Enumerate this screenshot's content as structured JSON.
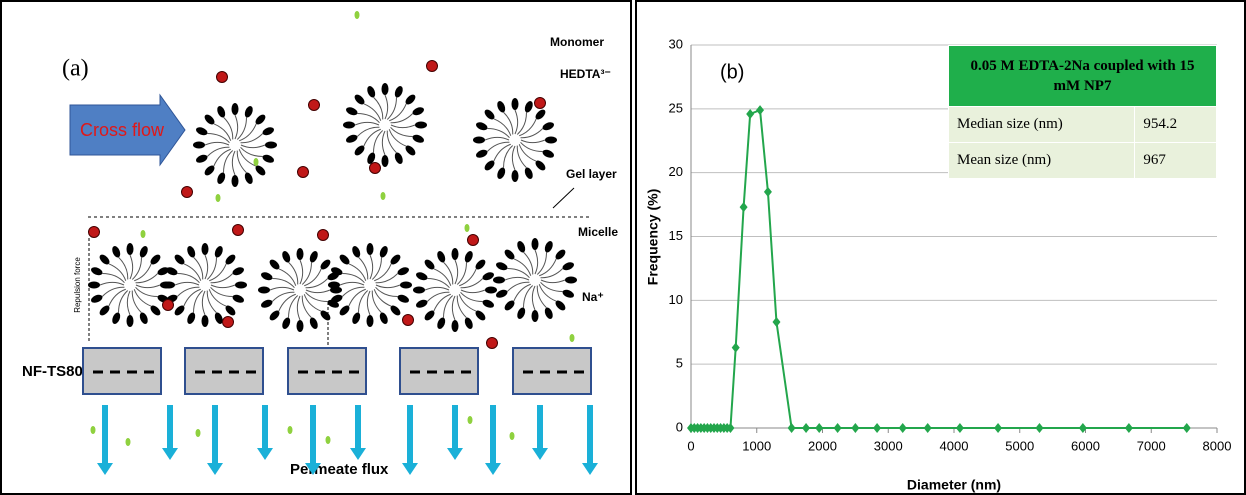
{
  "diagram": {
    "label": "(a)",
    "monomer": "Monomer",
    "hedta": "HEDTA³⁻",
    "cross_flow": "Cross flow",
    "gel_layer": "Gel layer",
    "micelle": "Micelle",
    "sodium": "Na⁺",
    "membrane": "NF-TS80",
    "permeate": "Permeate flux",
    "repulsion": "Repulsion force"
  },
  "chart_data": {
    "type": "line",
    "annotation": "(b)",
    "xlabel": "Diameter (nm)",
    "ylabel": "Frequency (%)",
    "color": "#23a64c",
    "grid": true,
    "x": [
      0,
      50,
      100,
      150,
      200,
      250,
      300,
      350,
      400,
      450,
      500,
      550,
      600,
      680,
      800,
      900,
      1050,
      1170,
      1300,
      1530,
      1750,
      1950,
      2230,
      2500,
      2830,
      3220,
      3600,
      4090,
      4670,
      5300,
      5960,
      6660,
      7540
    ],
    "values": [
      0,
      0,
      0,
      0,
      0,
      0,
      0,
      0,
      0,
      0,
      0,
      0,
      0,
      6.3,
      17.3,
      24.6,
      24.9,
      18.5,
      8.3,
      0,
      0,
      0,
      0,
      0,
      0,
      0,
      0,
      0,
      0,
      0,
      0,
      0,
      0
    ],
    "xlim": [
      0,
      8000
    ],
    "xticks": [
      0,
      1000,
      2000,
      3000,
      4000,
      5000,
      6000,
      7000,
      8000
    ],
    "ylim": [
      0,
      30
    ],
    "yticks": [
      0,
      5,
      10,
      15,
      20,
      25,
      30
    ],
    "table": {
      "header": "0.05 M EDTA-2Na coupled with 15 mM NP7",
      "rows": [
        [
          "Median size (nm)",
          "954.2"
        ],
        [
          "Mean size (nm)",
          "967"
        ]
      ]
    }
  }
}
